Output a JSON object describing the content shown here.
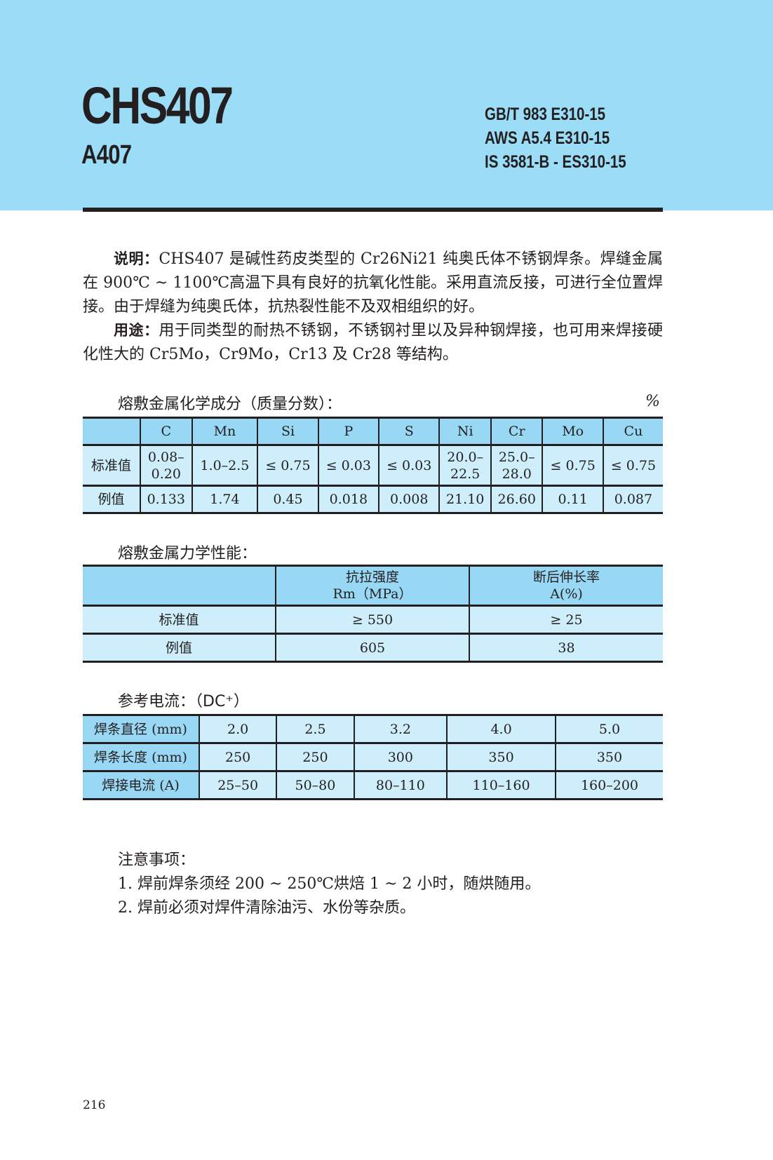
{
  "header": {
    "title": "CHS407",
    "subtitle": "A407",
    "standards": [
      "GB/T 983 E310-15",
      "AWS A5.4 E310-15",
      "IS 3581-B - ES310-15"
    ],
    "band_color": "#9bdcf6"
  },
  "description": {
    "label": "说明：",
    "text_line1": "CHS407 是碱性药皮类型的 Cr26Ni21 纯奥氏体不锈钢焊条。焊缝金属在 900℃ ~ 1100℃高温下具有良好的抗氧化性能。采用直流反接，可进行全位置焊接。由于焊缝为纯奥氏体，抗热裂性能不及双相组织的好。",
    "usage_label": "用途：",
    "usage_text": "用于同类型的耐热不锈钢，不锈钢衬里以及异种钢焊接，也可用来焊接硬化性大的 Cr5Mo，Cr9Mo，Cr13 及 Cr28 等结构。"
  },
  "chem": {
    "heading": "熔敷金属化学成分（质量分数）：",
    "unit": "%",
    "columns": [
      "",
      "C",
      "Mn",
      "Si",
      "P",
      "S",
      "Ni",
      "Cr",
      "Mo",
      "Cu"
    ],
    "rows": [
      [
        "标准值",
        "0.08–\n0.20",
        "1.0–2.5",
        "≤ 0.75",
        "≤ 0.03",
        "≤ 0.03",
        "20.0–\n22.5",
        "25.0–\n28.0",
        "≤ 0.75",
        "≤ 0.75"
      ],
      [
        "例值",
        "0.133",
        "1.74",
        "0.45",
        "0.018",
        "0.008",
        "21.10",
        "26.60",
        "0.11",
        "0.087"
      ]
    ]
  },
  "mech": {
    "heading": "熔敷金属力学性能：",
    "columns": [
      "",
      "抗拉强度\nRm（MPa）",
      "断后伸长率\nA(%)"
    ],
    "rows": [
      [
        "标准值",
        "≥ 550",
        "≥ 25"
      ],
      [
        "例值",
        "605",
        "38"
      ]
    ]
  },
  "current": {
    "heading": "参考电流：（DC⁺）",
    "rows": [
      [
        "焊条直径 (mm)",
        "2.0",
        "2.5",
        "3.2",
        "4.0",
        "5.0"
      ],
      [
        "焊条长度 (mm)",
        "250",
        "250",
        "300",
        "350",
        "350"
      ],
      [
        "焊接电流 (A)",
        "25–50",
        "50–80",
        "80–110",
        "110–160",
        "160–200"
      ]
    ]
  },
  "notes": {
    "heading": "注意事项：",
    "items": [
      "1. 焊前焊条须经 200 ~ 250℃烘焙 1 ~ 2 小时，随烘随用。",
      "2. 焊前必须对焊件清除油污、水份等杂质。"
    ]
  },
  "page_number": "216"
}
